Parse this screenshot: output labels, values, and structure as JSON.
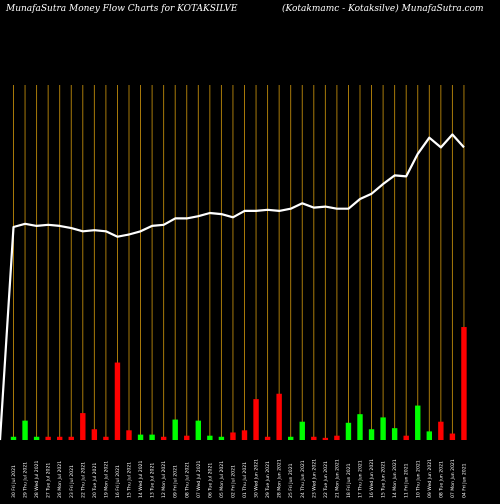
{
  "header": {
    "left_title": "MunafaSutra  Money Flow  Charts for KOTAKSILVE",
    "right_title": "(Kotakmamc -  Kotaksilve) MunafaSutra.com"
  },
  "colors": {
    "background": "#000000",
    "grid": "#b8860b",
    "line": "#ffffff",
    "up": "#00ff00",
    "down": "#ff0000"
  },
  "chart_data": {
    "type": "bar",
    "title": "MunafaSutra  Money Flow  Charts for KOTAKSILVE",
    "categories": [
      "30 Fri Jul 2021",
      "29 Thu Jul 2021",
      "28 Wed Jul 2021",
      "27 Tue Jul 2021",
      "26 Mon Jul 2021",
      "23 Fri Jul 2021",
      "22 Thu Jul 2021",
      "20 Tue Jul 2021",
      "19 Mon Jul 2021",
      "16 Fri Jul 2021",
      "15 Thu Jul 2021",
      "14 Wed Jul 2021",
      "13 Tue Jul 2021",
      "12 Mon Jul 2021",
      "09 Fri Jul 2021",
      "08 Thu Jul 2021",
      "07 Wed Jul 2021",
      "06 Tue Jul 2021",
      "05 Mon Jul 2021",
      "02 Fri Jul 2021",
      "01 Thu Jul 2021",
      "30 Wed Jun 2021",
      "29 Tue Jun 2021",
      "28 Mon Jun 2021",
      "25 Fri Jun 2021",
      "24 Thu Jun 2021",
      "23 Wed Jun 2021",
      "22 Tue Jun 2021",
      "21 Mon Jun 2021",
      "18 Fri Jun 2021",
      "17 Thu Jun 2021",
      "16 Wed Jun 2021",
      "15 Tue Jun 2021",
      "14 Mon Jun 2021",
      "11 Fri Jun 2021",
      "10 Thu Jun 2021",
      "09 Wed Jun 2021",
      "08 Tue Jun 2021",
      "07 Mon Jun 2021",
      "04 Fri Jun 2021"
    ],
    "bar_values": [
      3,
      18,
      3,
      3,
      3,
      3,
      25,
      10,
      3,
      72,
      9,
      5,
      5,
      3,
      19,
      4,
      18,
      4,
      3,
      7,
      9,
      38,
      3,
      43,
      3,
      17,
      3,
      2,
      4,
      16,
      24,
      10,
      21,
      11,
      4,
      32,
      8,
      17,
      6,
      105
    ],
    "bar_colors": [
      "up",
      "up",
      "up",
      "down",
      "down",
      "down",
      "down",
      "down",
      "down",
      "down",
      "down",
      "up",
      "up",
      "down",
      "up",
      "down",
      "up",
      "up",
      "up",
      "down",
      "down",
      "down",
      "down",
      "down",
      "up",
      "up",
      "down",
      "down",
      "down",
      "up",
      "up",
      "up",
      "up",
      "up",
      "down",
      "up",
      "up",
      "down",
      "down",
      "down"
    ],
    "line_values": [
      198,
      201,
      199,
      200,
      199,
      197,
      194,
      195,
      194,
      189,
      191,
      194,
      199,
      200,
      206,
      206,
      208,
      211,
      210,
      207,
      213,
      213,
      214,
      213,
      215,
      220,
      216,
      217,
      215,
      215,
      224,
      229,
      238,
      246,
      245,
      266,
      281,
      272,
      284,
      272
    ],
    "line_start_value": 0,
    "ylim": [
      0,
      330
    ],
    "grid": "vertical"
  }
}
